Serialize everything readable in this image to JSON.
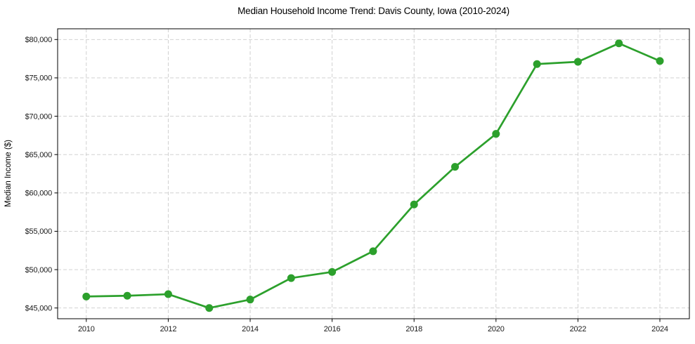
{
  "chart": {
    "title": "Median Household Income Trend: Davis County, Iowa (2010-2024)",
    "ylabel": "Median Income ($)",
    "xlabel": ""
  },
  "chart_data": {
    "type": "line",
    "title": "Median Household Income Trend: Davis County, Iowa (2010-2024)",
    "xlabel": "",
    "ylabel": "Median Income ($)",
    "x": [
      2010,
      2011,
      2012,
      2013,
      2014,
      2015,
      2016,
      2017,
      2018,
      2019,
      2020,
      2021,
      2022,
      2023,
      2024
    ],
    "series": [
      {
        "name": "Median Household Income",
        "values": [
          46500,
          46600,
          46800,
          45000,
          46100,
          48900,
          49700,
          52400,
          58500,
          63400,
          67700,
          76800,
          77100,
          79500,
          77200
        ],
        "color": "#2ca02c",
        "marker": "circle",
        "marker_size": 5.5,
        "line_width": 2.7
      }
    ],
    "xticks": [
      2010,
      2012,
      2014,
      2016,
      2018,
      2020,
      2022,
      2024
    ],
    "yticks": [
      45000,
      50000,
      55000,
      60000,
      65000,
      70000,
      75000,
      80000
    ],
    "ytick_prefix": "$",
    "xlim": [
      2009.3,
      2024.72
    ],
    "ylim": [
      43600,
      81400
    ],
    "grid": true,
    "grid_style": "dashed",
    "legend": false,
    "colors": {
      "line": "#2ca02c",
      "grid": "#cbcbcb",
      "spine": "#000000",
      "background": "#ffffff",
      "tick_text": "#1a1a1a"
    }
  }
}
